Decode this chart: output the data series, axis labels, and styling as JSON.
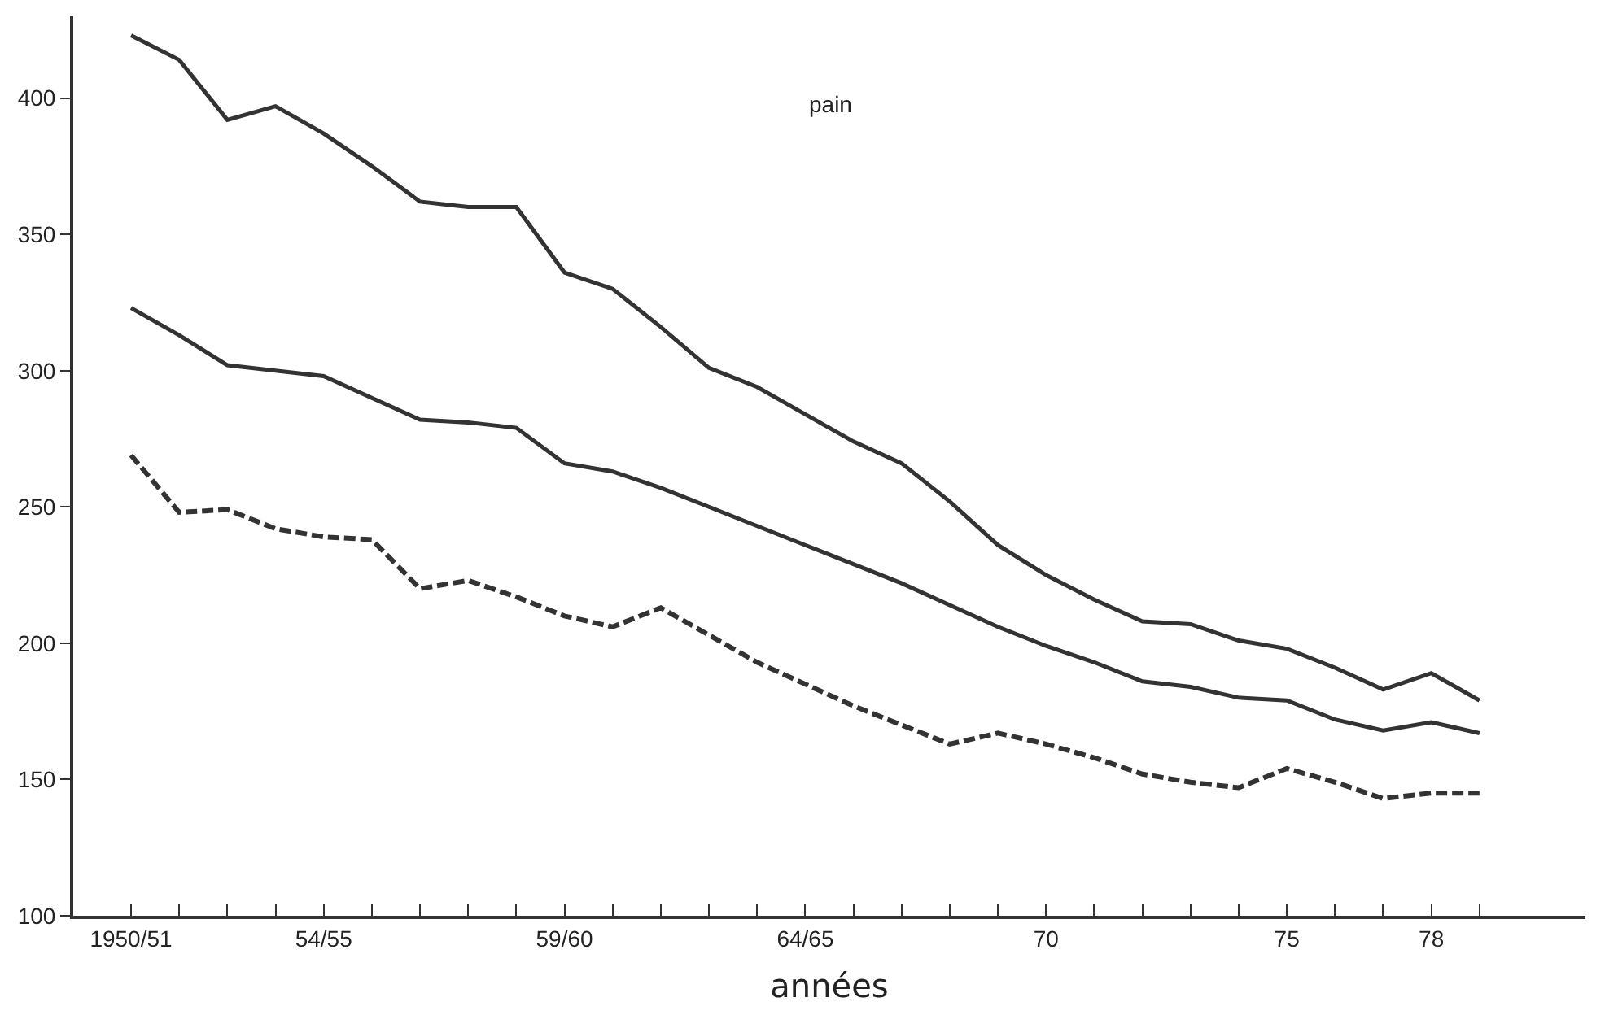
{
  "chart_data": {
    "type": "line",
    "title": "pain",
    "xlabel": "années",
    "categories": [
      "1950/51",
      null,
      null,
      null,
      "54/55",
      null,
      null,
      null,
      null,
      "59/60",
      null,
      null,
      null,
      null,
      "64/65",
      null,
      null,
      null,
      null,
      "70",
      null,
      null,
      null,
      null,
      "75",
      null,
      null,
      "78",
      null
    ],
    "series": [
      {
        "color": "#333333",
        "line_style": "solid",
        "values": [
          423,
          414,
          392,
          397,
          387,
          375,
          362,
          360,
          360,
          336,
          330,
          316,
          301,
          294,
          284,
          274,
          266,
          252,
          236,
          225,
          216,
          208,
          207,
          201,
          198,
          191,
          183,
          189,
          179
        ]
      },
      {
        "color": "#333333",
        "line_style": "solid",
        "values": [
          323,
          313,
          302,
          300,
          298,
          290,
          282,
          281,
          279,
          266,
          263,
          257,
          250,
          243,
          236,
          229,
          222,
          214,
          206,
          199,
          193,
          186,
          184,
          180,
          179,
          172,
          168,
          171,
          167
        ]
      },
      {
        "color": "#333333",
        "line_style": "dashed",
        "values": [
          269,
          248,
          249,
          242,
          239,
          238,
          220,
          223,
          217,
          210,
          206,
          213,
          203,
          193,
          185,
          177,
          170,
          163,
          167,
          163,
          158,
          152,
          149,
          147,
          154,
          149,
          143,
          145,
          145
        ]
      }
    ],
    "ylim": [
      100,
      430
    ],
    "yticks": [
      100,
      150,
      200,
      250,
      300,
      350,
      400
    ],
    "marker": "none"
  }
}
